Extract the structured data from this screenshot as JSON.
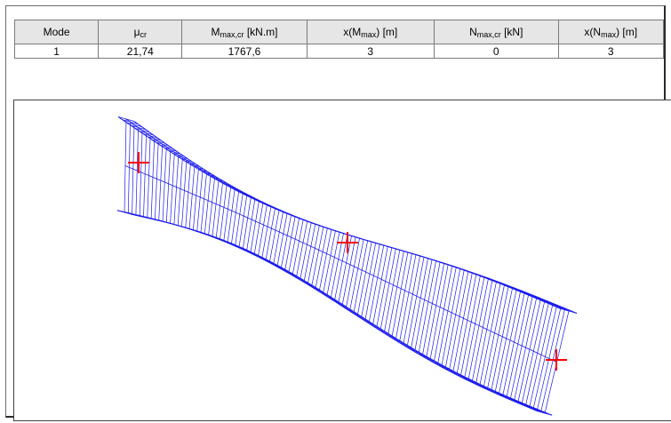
{
  "table": {
    "headers": {
      "mode": "Mode",
      "mu_main": "μ",
      "mu_sub": "cr",
      "mmax_main": "M",
      "mmax_sub": "max,cr",
      "mmax_unit": " [kN.m]",
      "xm_pre": "x(M",
      "xm_sub": "max",
      "xm_post": ") [m]",
      "nmax_main": "N",
      "nmax_sub": "max,cr",
      "nmax_unit": " [kN]",
      "xn_pre": "x(N",
      "xn_sub": "max",
      "xn_post": ") [m]"
    },
    "rows": [
      {
        "mode": "1",
        "mu_cr": "21,74",
        "m_max_cr": "1767,6",
        "x_m_max": "3",
        "n_max_cr": "0",
        "x_n_max": "3"
      }
    ]
  },
  "plot": {
    "mesh_color": "#1a1aee",
    "marker_color": "#ff0000",
    "markers": [
      "marker-left",
      "marker-middle",
      "marker-right"
    ]
  }
}
